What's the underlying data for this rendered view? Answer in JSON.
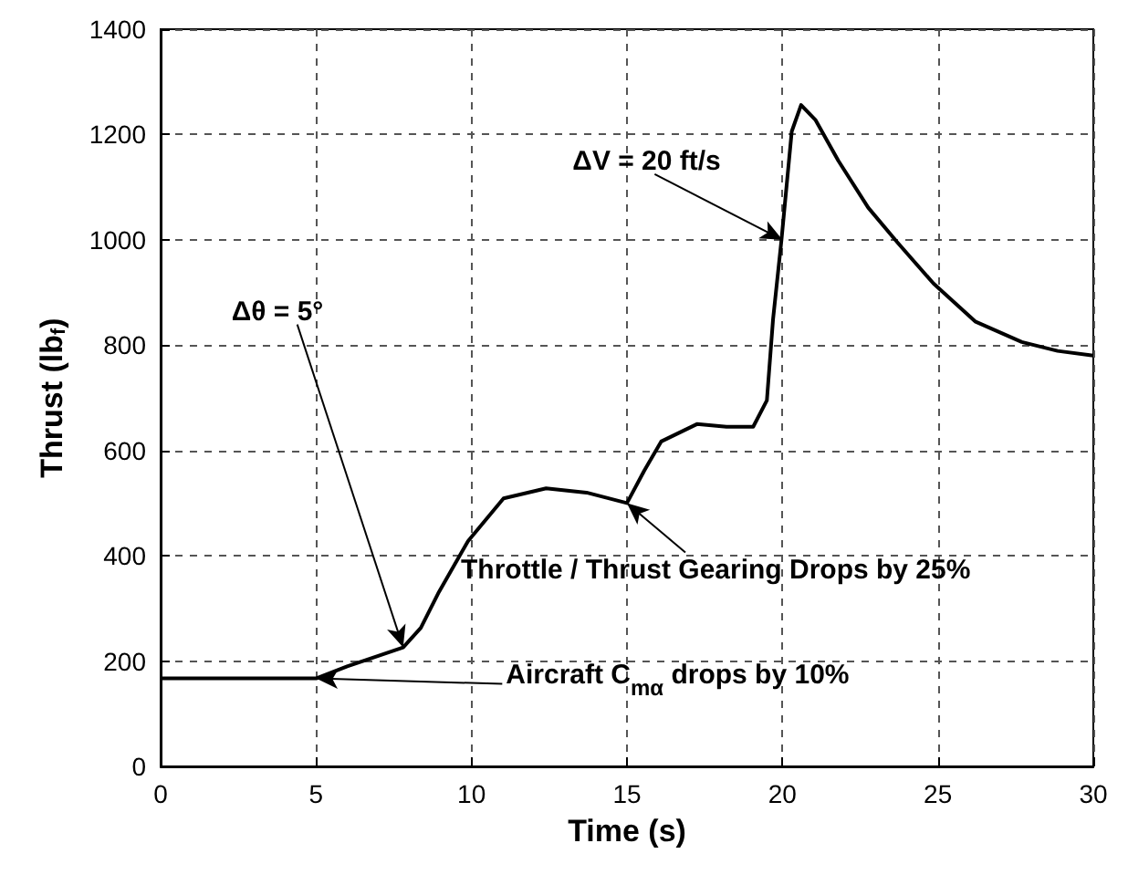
{
  "chart_data": {
    "type": "line",
    "xlabel": "Time (s)",
    "ylabel": "Thrust (lb$_{f}$)",
    "x": [
      0,
      1,
      2,
      3,
      4,
      5,
      6,
      7,
      7.8,
      8.37,
      8.95,
      9.89,
      11.03,
      12.4,
      13.7,
      15,
      15.55,
      16.1,
      17.25,
      18.2,
      19.06,
      19.5,
      19.7,
      19.97,
      20.3,
      20.6,
      21.06,
      21.8,
      22.76,
      23.7,
      24.86,
      26.2,
      27.7,
      28.85,
      30
    ],
    "series": [
      {
        "color": "#000000",
        "values": [
          167,
          167,
          167,
          167,
          167,
          167,
          190,
          210,
          226,
          263,
          331,
          428,
          509,
          528,
          520,
          500,
          561,
          617,
          650,
          645,
          645,
          695,
          850,
          1000,
          1206,
          1256,
          1228,
          1150,
          1061,
          995,
          917,
          845,
          806,
          789,
          780
        ]
      }
    ],
    "xlim": [
      0,
      30
    ],
    "ylim": [
      0,
      1400
    ],
    "xticks": [
      0,
      5,
      10,
      15,
      20,
      25,
      30
    ],
    "yticks": [
      0,
      200,
      400,
      600,
      800,
      1000,
      1200,
      1400
    ],
    "grid": true,
    "line_style": "solid",
    "marker": "none",
    "annotations": [
      {
        "text": "ΔV = 20 ft/s",
        "x": 20,
        "y": 1000
      },
      {
        "text": "Δθ = 5°",
        "x": 7.8,
        "y": 226
      },
      {
        "text": "Throttle / Thrust Gearing Drops by 25%",
        "x": 15,
        "y": 500
      },
      {
        "text": "Aircraft C$_{mα}$ drops by 10%",
        "x": 5,
        "y": 167
      }
    ]
  }
}
